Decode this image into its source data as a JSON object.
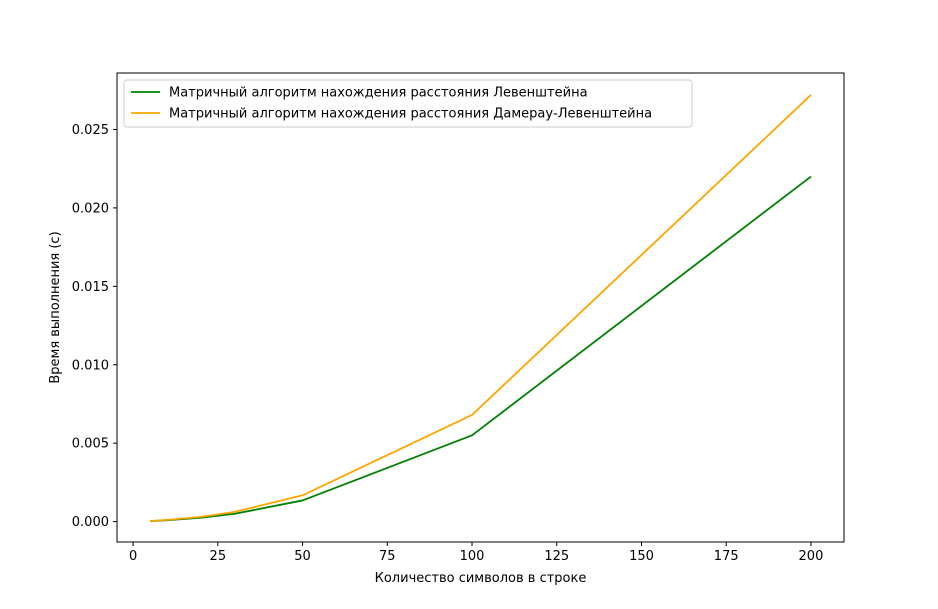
{
  "chart_data": {
    "type": "line",
    "title": "",
    "xlabel": "Количество символов в строке",
    "ylabel": "Время выполнения (с)",
    "xlim": [
      -4.75,
      209.75
    ],
    "ylim": [
      -0.0013,
      0.0286
    ],
    "xticks": [
      0,
      25,
      50,
      75,
      100,
      125,
      150,
      175,
      200
    ],
    "xtick_labels": [
      "0",
      "25",
      "50",
      "75",
      "100",
      "125",
      "150",
      "175",
      "200"
    ],
    "yticks": [
      0.0,
      0.005,
      0.01,
      0.015,
      0.02,
      0.025
    ],
    "ytick_labels": [
      "0.000",
      "0.005",
      "0.010",
      "0.015",
      "0.020",
      "0.025"
    ],
    "grid": false,
    "legend_position": "top-left",
    "x": [
      5,
      10,
      20,
      30,
      50,
      100,
      200
    ],
    "series": [
      {
        "name": "Матричный алгоритм нахождения расстояния Левенштейна",
        "color": "#008000",
        "values": [
          3e-05,
          9e-05,
          0.00025,
          0.0005,
          0.00135,
          0.0055,
          0.022
        ]
      },
      {
        "name": "Матричный алгоритм нахождения расстояния Дамерау-Левенштейна",
        "color": "#ffa500",
        "values": [
          4e-05,
          0.00011,
          0.0003,
          0.00062,
          0.00168,
          0.0068,
          0.0272
        ]
      }
    ]
  }
}
